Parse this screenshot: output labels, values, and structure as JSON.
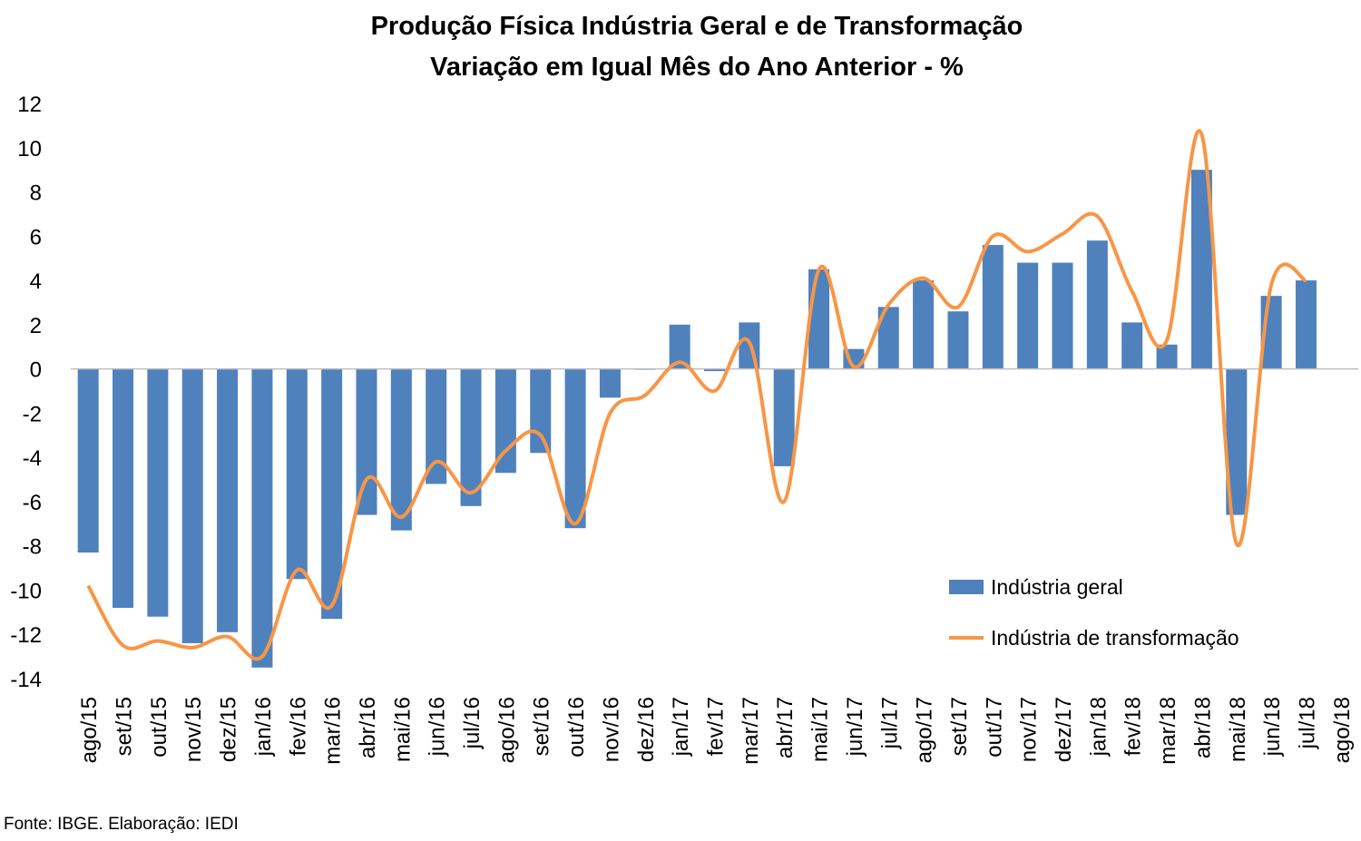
{
  "chart_data": {
    "type": "bar",
    "title": "Produção Física Indústria Geral e de Transformação",
    "subtitle": "Variação em Igual Mês do Ano Anterior - %",
    "xlabel": "",
    "ylabel": "",
    "ylim": [
      -14,
      12
    ],
    "yticks": [
      12,
      10,
      8,
      6,
      4,
      2,
      0,
      -2,
      -4,
      -6,
      -8,
      -10,
      -12,
      -14
    ],
    "categories": [
      "ago/15",
      "set/15",
      "out/15",
      "nov/15",
      "dez/15",
      "jan/16",
      "fev/16",
      "mar/16",
      "abr/16",
      "mai/16",
      "jun/16",
      "jul/16",
      "ago/16",
      "set/16",
      "out/16",
      "nov/16",
      "dez/16",
      "jan/17",
      "fev/17",
      "mar/17",
      "abr/17",
      "mai/17",
      "jun/17",
      "jul/17",
      "ago/17",
      "set/17",
      "out/17",
      "nov/17",
      "dez/17",
      "jan/18",
      "fev/18",
      "mar/18",
      "abr/18",
      "mai/18",
      "jun/18",
      "jul/18",
      "ago/18"
    ],
    "series": [
      {
        "name": "Indústria geral",
        "kind": "bar",
        "color": "#4F81BD",
        "values": [
          -8.3,
          -10.8,
          -11.2,
          -12.4,
          -11.9,
          -13.5,
          -9.5,
          -11.3,
          -6.6,
          -7.3,
          -5.2,
          -6.2,
          -4.7,
          -3.8,
          -7.2,
          -1.3,
          0.0,
          2.0,
          -0.1,
          2.1,
          -4.4,
          4.5,
          0.9,
          2.8,
          4.0,
          2.6,
          5.6,
          4.8,
          4.8,
          5.8,
          2.1,
          1.1,
          9.0,
          -6.6,
          3.3,
          4.0,
          null
        ]
      },
      {
        "name": "Indústria de transformação",
        "kind": "line",
        "color": "#F79646",
        "values": [
          -9.8,
          -12.5,
          -12.3,
          -12.6,
          -12.1,
          -13.0,
          -9.1,
          -10.7,
          -5.0,
          -6.7,
          -4.2,
          -5.6,
          -3.7,
          -3.0,
          -7.0,
          -2.0,
          -1.2,
          0.3,
          -1.0,
          1.2,
          -6.0,
          4.5,
          0.1,
          2.9,
          4.1,
          2.8,
          6.0,
          5.3,
          6.1,
          6.9,
          3.5,
          1.3,
          10.6,
          -7.9,
          3.8,
          4.0,
          null
        ]
      }
    ],
    "legend": {
      "placement": "right-lower-middle"
    },
    "grid": false
  },
  "source_note": "Fonte: IBGE. Elaboração: IEDI"
}
